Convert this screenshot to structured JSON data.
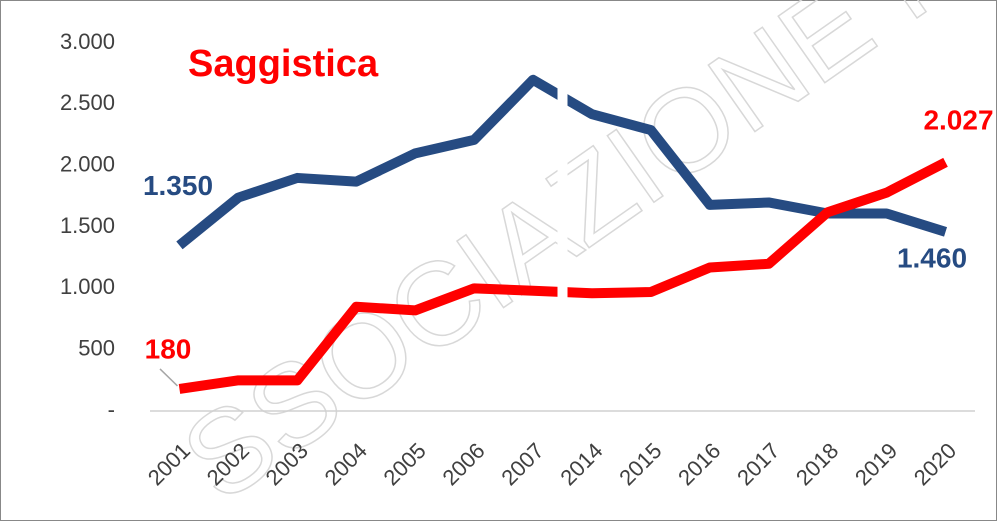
{
  "chart_data": {
    "type": "line",
    "title": "Saggistica",
    "watermark": "SSOCIAZIONE I",
    "categories": [
      "2001",
      "2002",
      "2003",
      "2004",
      "2005",
      "2006",
      "2007",
      "2014",
      "2015",
      "2016",
      "2017",
      "2018",
      "2019",
      "2020"
    ],
    "series": [
      {
        "name": null,
        "color": "#264b82",
        "values": [
          1350,
          1740,
          1900,
          1870,
          2100,
          2210,
          2700,
          2420,
          2290,
          1680,
          1700,
          1610,
          1610,
          1460
        ],
        "value_labels": [
          "1.350",
          null,
          null,
          null,
          null,
          null,
          null,
          null,
          null,
          null,
          null,
          null,
          null,
          "1.460"
        ]
      },
      {
        "name": null,
        "color": "#ff0000",
        "values": [
          180,
          250,
          250,
          850,
          820,
          1000,
          980,
          960,
          970,
          1170,
          1200,
          1620,
          1780,
          2027
        ],
        "value_labels": [
          "180",
          null,
          null,
          null,
          null,
          null,
          null,
          null,
          null,
          null,
          null,
          null,
          null,
          "2.027"
        ]
      }
    ],
    "ylim": [
      0,
      3000
    ],
    "yticks": [
      {
        "value": 0,
        "label": "-"
      },
      500,
      {
        "value": 1000,
        "label": "1.000"
      },
      {
        "value": 1500,
        "label": "1.500"
      },
      {
        "value": 2000,
        "label": "2.000"
      },
      {
        "value": 2500,
        "label": "2.500"
      },
      {
        "value": 3000,
        "label": "3.000"
      }
    ],
    "grid": false
  }
}
